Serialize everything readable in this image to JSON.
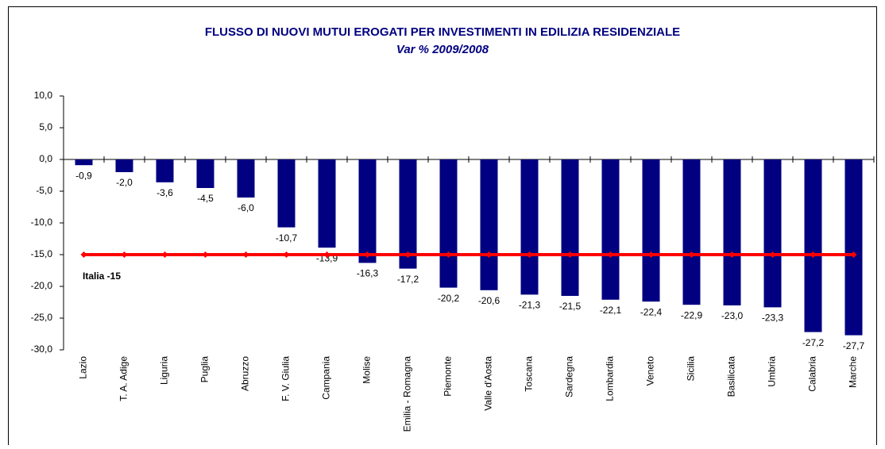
{
  "chart_data": {
    "type": "bar",
    "title": "FLUSSO DI NUOVI MUTUI EROGATI PER INVESTIMENTI IN EDILIZIA RESIDENZIALE",
    "subtitle": "Var % 2009/2008",
    "categories": [
      "Lazio",
      "T. A. Adige",
      "Liguria",
      "Puglia",
      "Abruzzo",
      "F. V. Giulia",
      "Campania",
      "Molise",
      "Emilia - Romagna",
      "Piemonte",
      "Valle d'Aosta",
      "Toscana",
      "Sardegna",
      "Lombardia",
      "Veneto",
      "Sicilia",
      "Basilicata",
      "Umbria",
      "Calabria",
      "Marche"
    ],
    "values": [
      -0.9,
      -2.0,
      -3.6,
      -4.5,
      -6.0,
      -10.7,
      -13.9,
      -16.3,
      -17.2,
      -20.2,
      -20.6,
      -21.3,
      -21.5,
      -22.1,
      -22.4,
      -22.9,
      -23.0,
      -23.3,
      -27.2,
      -27.7
    ],
    "value_labels": [
      "-0,9",
      "-2,0",
      "-3,6",
      "-4,5",
      "-6,0",
      "-10,7",
      "-13,9",
      "-16,3",
      "-17,2",
      "-20,2",
      "-20,6",
      "-21,3",
      "-21,5",
      "-22,1",
      "-22,4",
      "-22,9",
      "-23,0",
      "-23,3",
      "-27,2",
      "-27,7"
    ],
    "color": "#000080",
    "reference_line": {
      "label": "Italia -15",
      "value": -15,
      "color": "#ff0000"
    },
    "ylim": [
      -30,
      10
    ],
    "yticks": [
      {
        "value": -30,
        "label": "-30,0"
      },
      {
        "value": -25,
        "label": "-25,0"
      },
      {
        "value": -20,
        "label": "-20,0"
      },
      {
        "value": -15,
        "label": "-15,0"
      },
      {
        "value": -10,
        "label": "-10,0"
      },
      {
        "value": -5,
        "label": "-5,0"
      },
      {
        "value": 0,
        "label": "0,0"
      },
      {
        "value": 5,
        "label": "5,0"
      },
      {
        "value": 10,
        "label": "10,0"
      }
    ],
    "grid": false
  }
}
